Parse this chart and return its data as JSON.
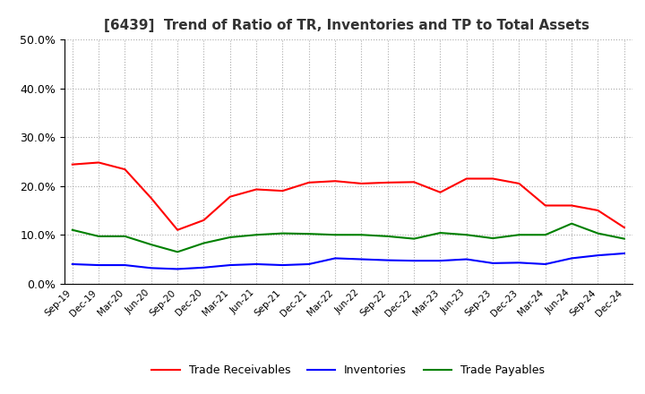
{
  "title": "[6439]  Trend of Ratio of TR, Inventories and TP to Total Assets",
  "x_labels": [
    "Sep-19",
    "Dec-19",
    "Mar-20",
    "Jun-20",
    "Sep-20",
    "Dec-20",
    "Mar-21",
    "Jun-21",
    "Sep-21",
    "Dec-21",
    "Mar-22",
    "Jun-22",
    "Sep-22",
    "Dec-22",
    "Mar-23",
    "Jun-23",
    "Sep-23",
    "Dec-23",
    "Mar-24",
    "Jun-24",
    "Sep-24",
    "Dec-24"
  ],
  "trade_receivables": [
    0.244,
    0.248,
    0.234,
    0.175,
    0.11,
    0.13,
    0.178,
    0.193,
    0.19,
    0.207,
    0.21,
    0.205,
    0.207,
    0.208,
    0.187,
    0.215,
    0.215,
    0.205,
    0.16,
    0.16,
    0.15,
    0.115
  ],
  "inventories": [
    0.04,
    0.038,
    0.038,
    0.032,
    0.03,
    0.033,
    0.038,
    0.04,
    0.038,
    0.04,
    0.052,
    0.05,
    0.048,
    0.047,
    0.047,
    0.05,
    0.042,
    0.043,
    0.04,
    0.052,
    0.058,
    0.062
  ],
  "trade_payables": [
    0.11,
    0.097,
    0.097,
    0.08,
    0.065,
    0.083,
    0.095,
    0.1,
    0.103,
    0.102,
    0.1,
    0.1,
    0.097,
    0.092,
    0.104,
    0.1,
    0.093,
    0.1,
    0.1,
    0.123,
    0.103,
    0.092
  ],
  "ylim": [
    0.0,
    0.5
  ],
  "yticks": [
    0.0,
    0.1,
    0.2,
    0.3,
    0.4,
    0.5
  ],
  "colors": {
    "trade_receivables": "#FF0000",
    "inventories": "#0000FF",
    "trade_payables": "#008000"
  },
  "legend_labels": [
    "Trade Receivables",
    "Inventories",
    "Trade Payables"
  ],
  "background_color": "#FFFFFF",
  "grid_color": "#AAAAAA"
}
